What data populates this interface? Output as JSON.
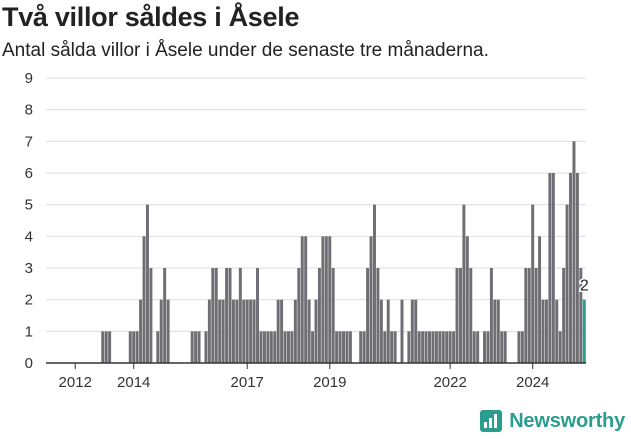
{
  "title": "Två villor såldes i Åsele",
  "subtitle": "Antal sålda villor i Åsele under de senaste tre månaderna.",
  "brand": "Newsworthy",
  "colors": {
    "bar": "#6e6e73",
    "highlight": "#2a9d8f",
    "grid": "#dddddd",
    "axis": "#333333"
  },
  "chart_data": {
    "type": "bar",
    "ylim": [
      0,
      9
    ],
    "yticks": [
      0,
      1,
      2,
      3,
      4,
      5,
      6,
      7,
      8,
      9
    ],
    "grid": true,
    "start_month": "2011-12",
    "xtick_labels": [
      {
        "label": "2012",
        "month": "2012-08"
      },
      {
        "label": "2014",
        "month": "2014-01"
      },
      {
        "label": "2017",
        "month": "2016-10"
      },
      {
        "label": "2019",
        "month": "2018-10"
      },
      {
        "label": "2022",
        "month": "2021-09"
      },
      {
        "label": "2024",
        "month": "2023-09"
      }
    ],
    "values": [
      0,
      0,
      0,
      0,
      0,
      0,
      0,
      0,
      0,
      0,
      0,
      0,
      0,
      0,
      0,
      0,
      1,
      1,
      1,
      0,
      0,
      0,
      0,
      0,
      1,
      1,
      1,
      2,
      4,
      5,
      3,
      0,
      1,
      2,
      3,
      2,
      0,
      0,
      0,
      0,
      0,
      0,
      1,
      1,
      1,
      0,
      1,
      2,
      3,
      3,
      2,
      2,
      3,
      3,
      2,
      2,
      3,
      2,
      2,
      2,
      2,
      3,
      1,
      1,
      1,
      1,
      1,
      2,
      2,
      1,
      1,
      1,
      2,
      3,
      4,
      4,
      2,
      1,
      2,
      3,
      4,
      4,
      4,
      3,
      1,
      1,
      1,
      1,
      1,
      0,
      0,
      1,
      1,
      3,
      4,
      5,
      3,
      2,
      1,
      2,
      1,
      1,
      0,
      2,
      0,
      1,
      2,
      2,
      1,
      1,
      1,
      1,
      1,
      1,
      1,
      1,
      1,
      1,
      1,
      3,
      3,
      5,
      4,
      3,
      1,
      1,
      0,
      1,
      1,
      3,
      2,
      2,
      1,
      1,
      0,
      0,
      0,
      1,
      1,
      3,
      3,
      5,
      3,
      4,
      2,
      2,
      6,
      6,
      2,
      1,
      3,
      5,
      6,
      7,
      6,
      3,
      2
    ],
    "highlight_last": true,
    "last_value_label": "2"
  }
}
